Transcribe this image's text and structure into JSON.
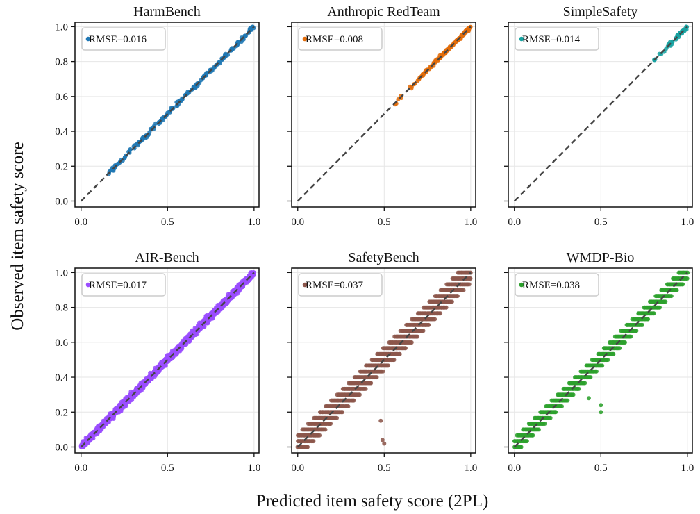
{
  "figure": {
    "xlabel": "Predicted item safety score (2PL)",
    "ylabel": "Observed item safety score"
  },
  "chart_data": [
    {
      "type": "scatter",
      "title": "HarmBench",
      "legend": "RMSE=0.016",
      "legend_position": "top-left",
      "color": "#1f77b4",
      "xlim": [
        0,
        1
      ],
      "ylim": [
        0,
        1
      ],
      "xticks": [
        "0.0",
        "0.5",
        "1.0"
      ],
      "yticks": [
        "0.0",
        "0.2",
        "0.4",
        "0.6",
        "0.8",
        "1.0"
      ],
      "grid": true,
      "reference_line": "y = x (dashed)",
      "points": {
        "distribution": "dense",
        "count": 200,
        "x_range": [
          0.16,
          1.0
        ],
        "noise": 0.012,
        "x_bias": 1.0
      }
    },
    {
      "type": "scatter",
      "title": "Anthropic RedTeam",
      "legend": "RMSE=0.008",
      "legend_position": "top-left",
      "color": "#e36c09",
      "xlim": [
        0,
        1
      ],
      "ylim": [
        0,
        1
      ],
      "xticks": [
        "0.0",
        "0.5",
        "1.0"
      ],
      "yticks": [
        "0.0",
        "0.2",
        "0.4",
        "0.6",
        "0.8",
        "1.0"
      ],
      "grid": true,
      "reference_line": "y = x (dashed)",
      "points": {
        "distribution": "dense",
        "count": 130,
        "x_range": [
          0.53,
          1.0
        ],
        "noise": 0.01,
        "x_bias": 2.2
      }
    },
    {
      "type": "scatter",
      "title": "SimpleSafety",
      "legend": "RMSE=0.014",
      "legend_position": "top-left",
      "color": "#17a2a0",
      "xlim": [
        0,
        1
      ],
      "ylim": [
        0,
        1
      ],
      "xticks": [
        "0.0",
        "0.5",
        "1.0"
      ],
      "yticks": [
        "0.0",
        "0.2",
        "0.4",
        "0.6",
        "0.8",
        "1.0"
      ],
      "grid": true,
      "reference_line": "y = x (dashed)",
      "points": {
        "distribution": "dense",
        "count": 40,
        "x_range": [
          0.74,
          1.0
        ],
        "noise": 0.014,
        "x_bias": 2.5
      }
    },
    {
      "type": "scatter",
      "title": "AIR-Bench",
      "legend": "RMSE=0.017",
      "legend_position": "top-left",
      "color": "#9b4dff",
      "xlim": [
        0,
        1
      ],
      "ylim": [
        0,
        1
      ],
      "xticks": [
        "0.0",
        "0.5",
        "1.0"
      ],
      "yticks": [
        "0.0",
        "0.2",
        "0.4",
        "0.6",
        "0.8",
        "1.0"
      ],
      "grid": true,
      "reference_line": "y = x (dashed)",
      "points": {
        "distribution": "dense",
        "count": 1800,
        "x_range": [
          0.0,
          1.0
        ],
        "noise": 0.02,
        "x_bias": 1.0
      }
    },
    {
      "type": "scatter",
      "title": "SafetyBench",
      "legend": "RMSE=0.037",
      "legend_position": "top-left",
      "color": "#8c564b",
      "xlim": [
        0,
        1
      ],
      "ylim": [
        0,
        1
      ],
      "xticks": [
        "0.0",
        "0.5",
        "1.0"
      ],
      "yticks": [
        "0.0",
        "0.2",
        "0.4",
        "0.6",
        "0.8",
        "1.0"
      ],
      "grid": true,
      "reference_line": "y = x (dashed)",
      "points": {
        "distribution": "quantized",
        "y_step": 0.0333,
        "x_spread": 0.13,
        "x_range": [
          0.0,
          1.0
        ],
        "extra": [
          [
            0.48,
            0.15
          ],
          [
            0.49,
            0.04
          ],
          [
            0.5,
            0.02
          ]
        ]
      }
    },
    {
      "type": "scatter",
      "title": "WMDP-Bio",
      "legend": "RMSE=0.038",
      "legend_position": "top-left",
      "color": "#2ca02c",
      "xlim": [
        0,
        1
      ],
      "ylim": [
        0,
        1
      ],
      "xticks": [
        "0.0",
        "0.5",
        "1.0"
      ],
      "yticks": [
        "0.0",
        "0.2",
        "0.4",
        "0.6",
        "0.8",
        "1.0"
      ],
      "grid": true,
      "reference_line": "y = x (dashed)",
      "points": {
        "distribution": "quantized",
        "y_step": 0.0333,
        "x_spread": 0.09,
        "x_range": [
          0.0,
          1.0
        ],
        "extra": [
          [
            0.43,
            0.28
          ],
          [
            0.5,
            0.2
          ],
          [
            0.5,
            0.24
          ]
        ]
      }
    }
  ]
}
